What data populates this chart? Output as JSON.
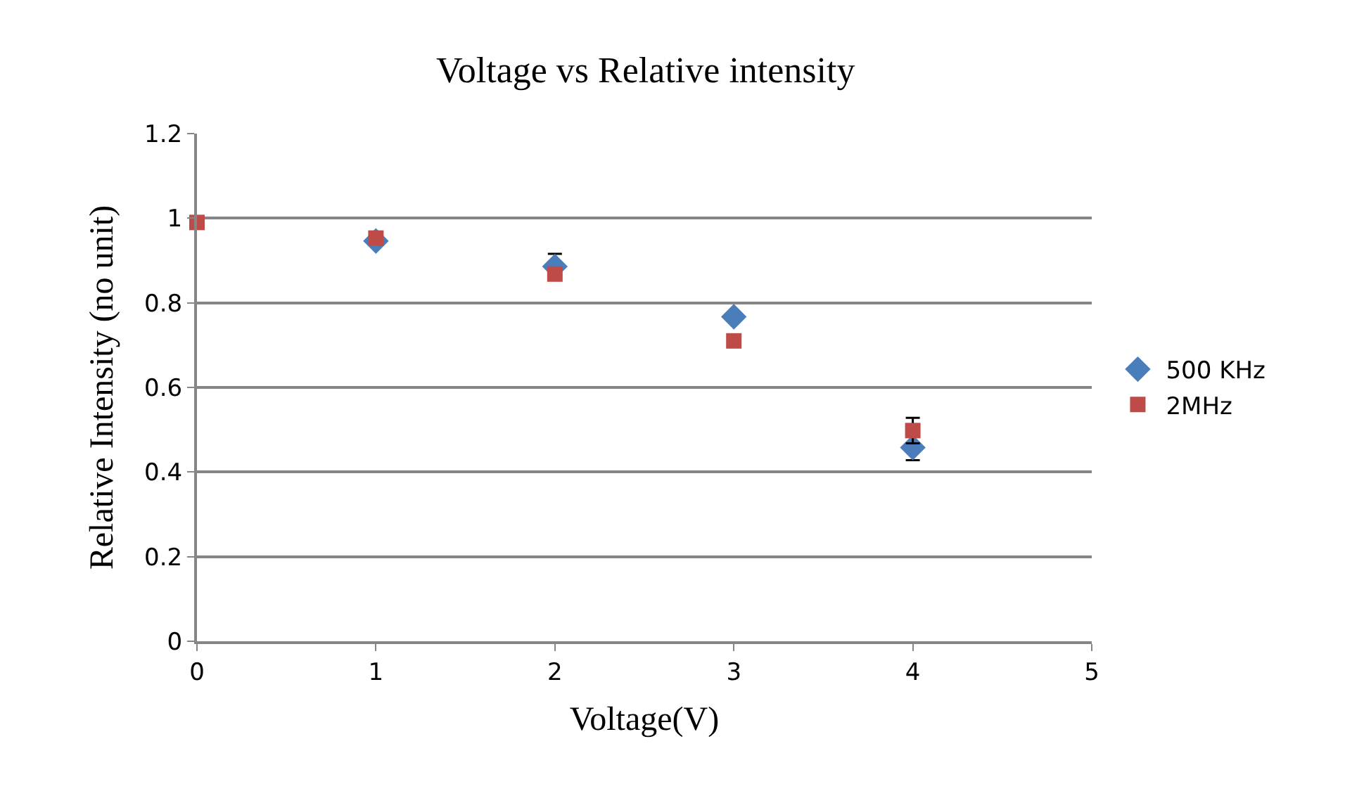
{
  "chart_data": {
    "type": "scatter",
    "title": "Voltage vs Relative intensity",
    "xlabel": "Voltage(V)",
    "ylabel": "Relative Intensity (no unit)",
    "x": [
      0,
      1,
      2,
      3,
      4
    ],
    "series": [
      {
        "name": "500 KHz",
        "color": "#4a7ebb",
        "marker": "diamond",
        "values": [
          null,
          0.946,
          0.886,
          0.767,
          0.458
        ],
        "errors": [
          null,
          null,
          0.03,
          null,
          0.03
        ]
      },
      {
        "name": "2MHz",
        "color": "#be4b48",
        "marker": "square",
        "values": [
          0.99,
          0.953,
          0.868,
          0.71,
          0.498
        ],
        "errors": [
          null,
          null,
          null,
          null,
          0.03
        ]
      }
    ],
    "xlim": [
      0,
      5
    ],
    "xticks": [
      0,
      1,
      2,
      3,
      4,
      5
    ],
    "ylim": [
      0,
      1.2
    ],
    "yticks": [
      0,
      0.2,
      0.4,
      0.6,
      0.8,
      1,
      1.2
    ],
    "grid": "y",
    "legend": "right"
  }
}
